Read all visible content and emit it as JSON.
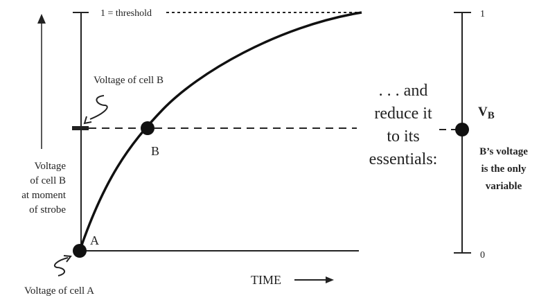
{
  "left": {
    "threshold": "1 = threshold",
    "voltage_b": "Voltage of cell B",
    "axis_label": [
      "Voltage",
      "of cell B",
      "at moment",
      "of strobe"
    ],
    "point_a": "A",
    "point_b": "B",
    "voltage_a": "Voltage of cell A",
    "time": "TIME"
  },
  "middle": {
    "lines": [
      ". . . and",
      "reduce it",
      "to its",
      "essentials:"
    ]
  },
  "right": {
    "top": "1",
    "bottom": "0",
    "v": "V",
    "v_sub": "B",
    "note": [
      "B’s voltage",
      "is the only",
      "variable"
    ]
  }
}
